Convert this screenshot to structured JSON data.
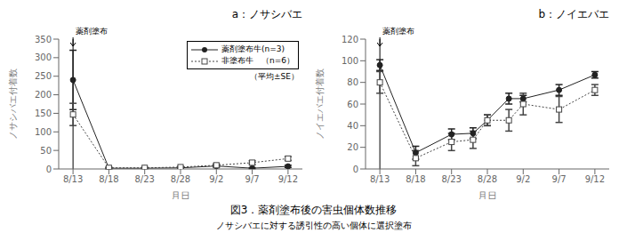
{
  "title": "図3．薬剤塗布後の害虫個体数推移",
  "subtitle": "ノサシバエに対する誘引性の高い個体に選択塗布",
  "chart_data": [
    {
      "type": "line",
      "title": "a：ノサシバエ",
      "x_label": "月日",
      "y_label": "ノサシバエ付着数",
      "x": [
        0,
        5,
        10,
        15,
        20,
        25,
        30
      ],
      "xlim": [
        -2,
        32
      ],
      "xticks": [
        {
          "value": 0,
          "label": "8/13"
        },
        {
          "value": 5,
          "label": "8/18"
        },
        {
          "value": 10,
          "label": "8/23"
        },
        {
          "value": 15,
          "label": "8/28"
        },
        {
          "value": 20,
          "label": "9/2"
        },
        {
          "value": 25,
          "label": "9/7"
        },
        {
          "value": 30,
          "label": "9/12"
        }
      ],
      "ylim": [
        0,
        350
      ],
      "yticks": [
        0,
        50,
        100,
        150,
        200,
        250,
        300,
        350
      ],
      "legend": "upper right",
      "annotations": [
        {
          "text": "薬剤塗布",
          "x": 0
        },
        {
          "text": "（平均±SE）"
        }
      ],
      "series": [
        {
          "name": "薬剤塗布牛(n=3)",
          "color": "#222222",
          "marker": "circle",
          "line_style": "solid",
          "values": [
            240,
            2,
            2,
            3,
            8,
            2,
            7
          ],
          "error": [
            80,
            1.5,
            1,
            1,
            3,
            1,
            3
          ]
        },
        {
          "name": "非塗布牛　（n=6）",
          "color": "#444444",
          "marker": "square",
          "line_style": "dotted",
          "values": [
            147,
            3,
            3,
            5,
            10,
            17,
            28
          ],
          "error": [
            30,
            2,
            1.5,
            2,
            4,
            5,
            5
          ]
        }
      ]
    },
    {
      "type": "line",
      "title": "b：ノイエバエ",
      "x_label": "月日",
      "y_label": "ノイエバエ付着数",
      "x": [
        0,
        5,
        10,
        13,
        15,
        18,
        20,
        25,
        30
      ],
      "xlim": [
        -2,
        32
      ],
      "xticks": [
        {
          "value": 0,
          "label": "8/13"
        },
        {
          "value": 5,
          "label": "8/18"
        },
        {
          "value": 10,
          "label": "8/23"
        },
        {
          "value": 15,
          "label": "8/28"
        },
        {
          "value": 20,
          "label": "9/2"
        },
        {
          "value": 25,
          "label": "9/7"
        },
        {
          "value": 30,
          "label": "9/12"
        }
      ],
      "ylim": [
        0,
        120
      ],
      "yticks": [
        0,
        20,
        40,
        60,
        80,
        100,
        120
      ],
      "annotations": [
        {
          "text": "薬剤塗布",
          "x": 0
        }
      ],
      "series": [
        {
          "color": "#222222",
          "marker": "circle",
          "line_style": "solid",
          "values": [
            96,
            15,
            32,
            33,
            45,
            65,
            65,
            73,
            87
          ],
          "error": [
            5,
            6,
            5,
            5,
            5,
            5,
            3,
            5,
            3
          ]
        },
        {
          "color": "#444444",
          "marker": "square",
          "line_style": "dotted",
          "values": [
            80,
            10,
            25,
            27,
            45,
            45,
            60,
            55,
            73
          ],
          "error": [
            10,
            7,
            8,
            8,
            5,
            10,
            10,
            12,
            5
          ]
        }
      ]
    }
  ]
}
